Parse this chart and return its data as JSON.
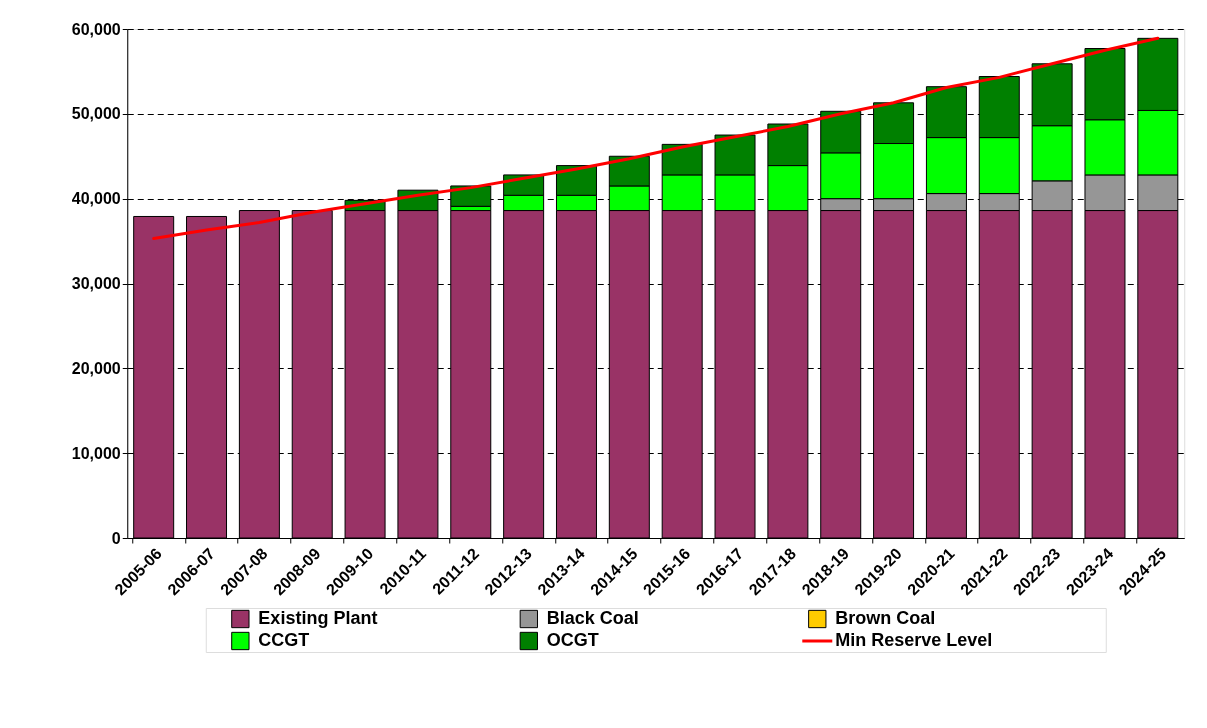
{
  "chart_data": {
    "type": "bar",
    "stacked": true,
    "categories": [
      "2005-06",
      "2006-07",
      "2007-08",
      "2008-09",
      "2009-10",
      "2010-11",
      "2011-12",
      "2012-13",
      "2013-14",
      "2014-15",
      "2015-16",
      "2016-17",
      "2017-18",
      "2018-19",
      "2019-20",
      "2020-21",
      "2021-22",
      "2022-23",
      "2023-24",
      "2024-25"
    ],
    "series": [
      {
        "name": "Existing Plant",
        "color": "#993366",
        "values": [
          37900,
          37900,
          38600,
          38600,
          38600,
          38600,
          38600,
          38600,
          38600,
          38600,
          38600,
          38600,
          38600,
          38600,
          38600,
          38600,
          38600,
          38600,
          38600,
          38600
        ]
      },
      {
        "name": "Black Coal",
        "color": "#969696",
        "values": [
          0,
          0,
          0,
          0,
          0,
          0,
          0,
          0,
          0,
          0,
          0,
          0,
          0,
          1400,
          1400,
          2000,
          2000,
          3500,
          4200,
          4200
        ]
      },
      {
        "name": "Brown Coal",
        "color": "#ffcc00",
        "values": [
          0,
          0,
          0,
          0,
          0,
          0,
          0,
          0,
          0,
          0,
          0,
          0,
          0,
          0,
          0,
          0,
          0,
          0,
          0,
          0
        ]
      },
      {
        "name": "CCGT",
        "color": "#00ff00",
        "values": [
          0,
          0,
          0,
          0,
          0,
          0,
          500,
          1800,
          1800,
          2900,
          4200,
          4200,
          5300,
          5400,
          6500,
          6600,
          6600,
          6500,
          6500,
          7600
        ]
      },
      {
        "name": "OCGT",
        "color": "#008000",
        "values": [
          0,
          0,
          0,
          0,
          1200,
          2400,
          2400,
          2400,
          3500,
          3500,
          3600,
          4700,
          4900,
          4900,
          4800,
          6000,
          7200,
          7300,
          8400,
          8500
        ]
      },
      {
        "name": "Min Reserve Level",
        "color": "#ff0000",
        "type": "line",
        "values": [
          35300,
          36300,
          37200,
          38400,
          39400,
          40400,
          41300,
          42400,
          43500,
          44700,
          46100,
          47300,
          48500,
          50000,
          51300,
          53100,
          54300,
          55900,
          57500,
          58900
        ]
      }
    ],
    "ylim": [
      0,
      60000
    ],
    "yticks": [
      0,
      {
        "value": 10000,
        "label": "10,000"
      },
      {
        "value": 20000,
        "label": "20,000"
      },
      {
        "value": 30000,
        "label": "30,000"
      },
      {
        "value": 40000,
        "label": "40,000"
      },
      {
        "value": 50000,
        "label": "50,000"
      },
      {
        "value": 60000,
        "label": "60,000"
      }
    ],
    "grid": "y",
    "legend": "bottom"
  }
}
